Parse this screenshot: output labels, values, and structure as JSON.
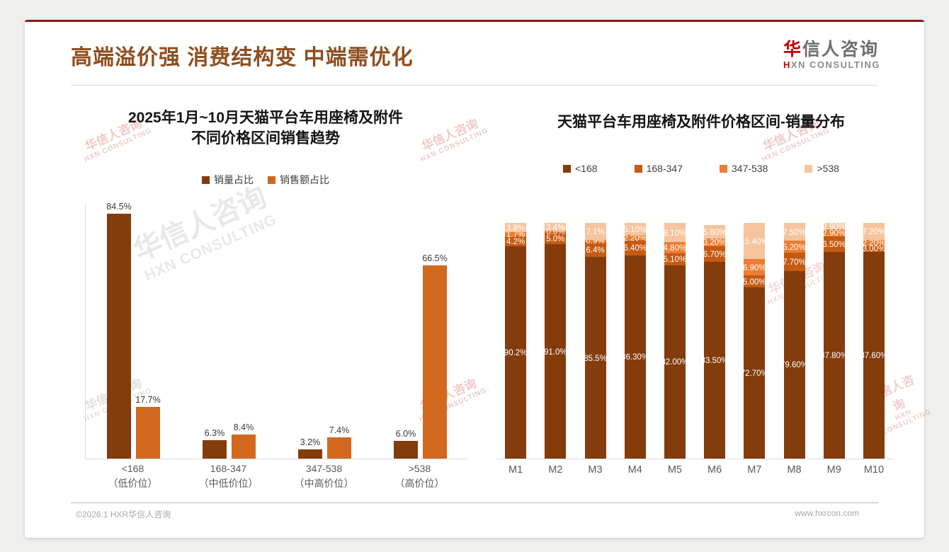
{
  "slide": {
    "title": "高端溢价强 消费结构变 中端需优化",
    "logo": {
      "name_red": "华",
      "name_rest": "信人咨询",
      "tagline_red": "H",
      "tagline_rest": "XN CONSULTING"
    },
    "watermark": {
      "line1": "华信人咨询",
      "line2": "HXN CONSULTING"
    },
    "footer": {
      "left": "©2026.1 HXR华信人咨询",
      "right": "www.hxrcon.com"
    }
  },
  "colors": {
    "accent_bar": "#8B1A18",
    "title_brown": "#8F4E1E",
    "logo_red": "#C00000",
    "axis_line": "#d9d9d9",
    "dark_brown": "#843C0C",
    "orange": "#D2691E",
    "mid_orange": "#C55A11",
    "light_orange": "#ED7D31",
    "peach": "#F6C49E"
  },
  "chart_data": [
    {
      "type": "bar",
      "title_lines": [
        "2025年1月~10月天猫平台车用座椅及附件",
        "不同价格区间销售趋势"
      ],
      "legend_position": "top",
      "grid": false,
      "value_unit": "%",
      "ylim": [
        0,
        88
      ],
      "categories": [
        "<168",
        "168-347",
        "347-538",
        ">538"
      ],
      "category_sublabels": [
        "（低价位）",
        "（中低价位）",
        "（中高价位）",
        "（高价位）"
      ],
      "series": [
        {
          "name": "销量占比",
          "color": "#843C0C",
          "values": [
            84.5,
            6.3,
            3.2,
            6.0
          ],
          "labels": [
            "84.5%",
            "6.3%",
            "3.2%",
            "6.0%"
          ]
        },
        {
          "name": "销售额占比",
          "color": "#D2691E",
          "values": [
            17.7,
            8.4,
            7.4,
            66.5
          ],
          "labels": [
            "17.7%",
            "8.4%",
            "7.4%",
            "66.5%"
          ]
        }
      ]
    },
    {
      "type": "stacked-bar",
      "title": "天猫平台车用座椅及附件价格区间-销量分布",
      "legend_position": "top",
      "grid": false,
      "value_unit": "%",
      "ylim": [
        0,
        100
      ],
      "categories": [
        "M1",
        "M2",
        "M3",
        "M4",
        "M5",
        "M6",
        "M7",
        "M8",
        "M9",
        "M10"
      ],
      "series": [
        {
          "name": "<168",
          "color": "#843C0C",
          "values": [
            90.2,
            91.0,
            85.5,
            86.3,
            82.0,
            83.5,
            72.7,
            79.6,
            87.8,
            87.6
          ],
          "labels": [
            "90.2%",
            "91.0%",
            "85.5%",
            "86.30%",
            "82.00%",
            "83.50%",
            "72.70%",
            "79.60%",
            "87.80%",
            "87.60%"
          ]
        },
        {
          "name": "168-347",
          "color": "#C55A11",
          "values": [
            4.2,
            5.0,
            6.4,
            6.4,
            5.1,
            6.7,
            5.0,
            7.7,
            6.5,
            3.0
          ],
          "labels": [
            "4.2%",
            "5.0%",
            "6.4%",
            "6.40%",
            "5.10%",
            "6.70%",
            "5.00%",
            "7.70%",
            "6.50%",
            "3.00%"
          ]
        },
        {
          "name": "347-538",
          "color": "#ED7D31",
          "values": [
            1.7,
            0.6,
            0.9,
            2.2,
            4.8,
            3.2,
            6.9,
            5.2,
            2.9,
            2.2
          ],
          "labels": [
            "1.7%",
            "0.6%",
            "0.9%",
            "2.20%",
            "4.80%",
            "3.20%",
            "6.90%",
            "5.20%",
            "2.90%",
            "2.20%"
          ]
        },
        {
          "name": ">538",
          "color": "#F6C49E",
          "values": [
            3.8,
            3.4,
            7.1,
            5.1,
            8.1,
            5.6,
            15.4,
            7.5,
            2.9,
            7.2
          ],
          "labels": [
            "3.8%",
            "3.4%",
            "7.1%",
            "5.10%",
            "8.10%",
            "5.60%",
            "15.40%",
            "7.50%",
            "2.90%",
            "7.20%"
          ]
        }
      ]
    }
  ]
}
